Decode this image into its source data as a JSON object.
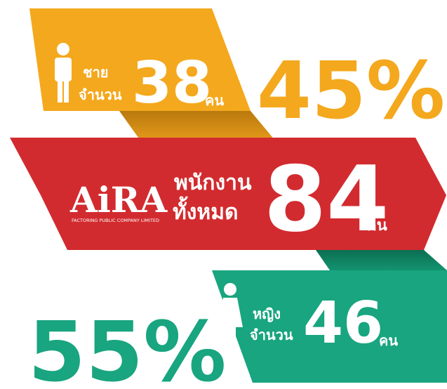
{
  "male": {
    "label": "ชาย",
    "count_label": "จำนวน",
    "count": "38",
    "unit": "คน",
    "percent": "45%"
  },
  "total": {
    "logo": "AiRA",
    "logo_subtitle": "FACTORING PUBLIC COMPANY LIMITED",
    "label": "พนักงาน",
    "label2": "ทั้งหมด",
    "count": "84",
    "unit": "คน"
  },
  "female": {
    "label": "หญิง",
    "count_label": "จำนวน",
    "count": "46",
    "unit": "คน",
    "percent": "55%"
  }
}
